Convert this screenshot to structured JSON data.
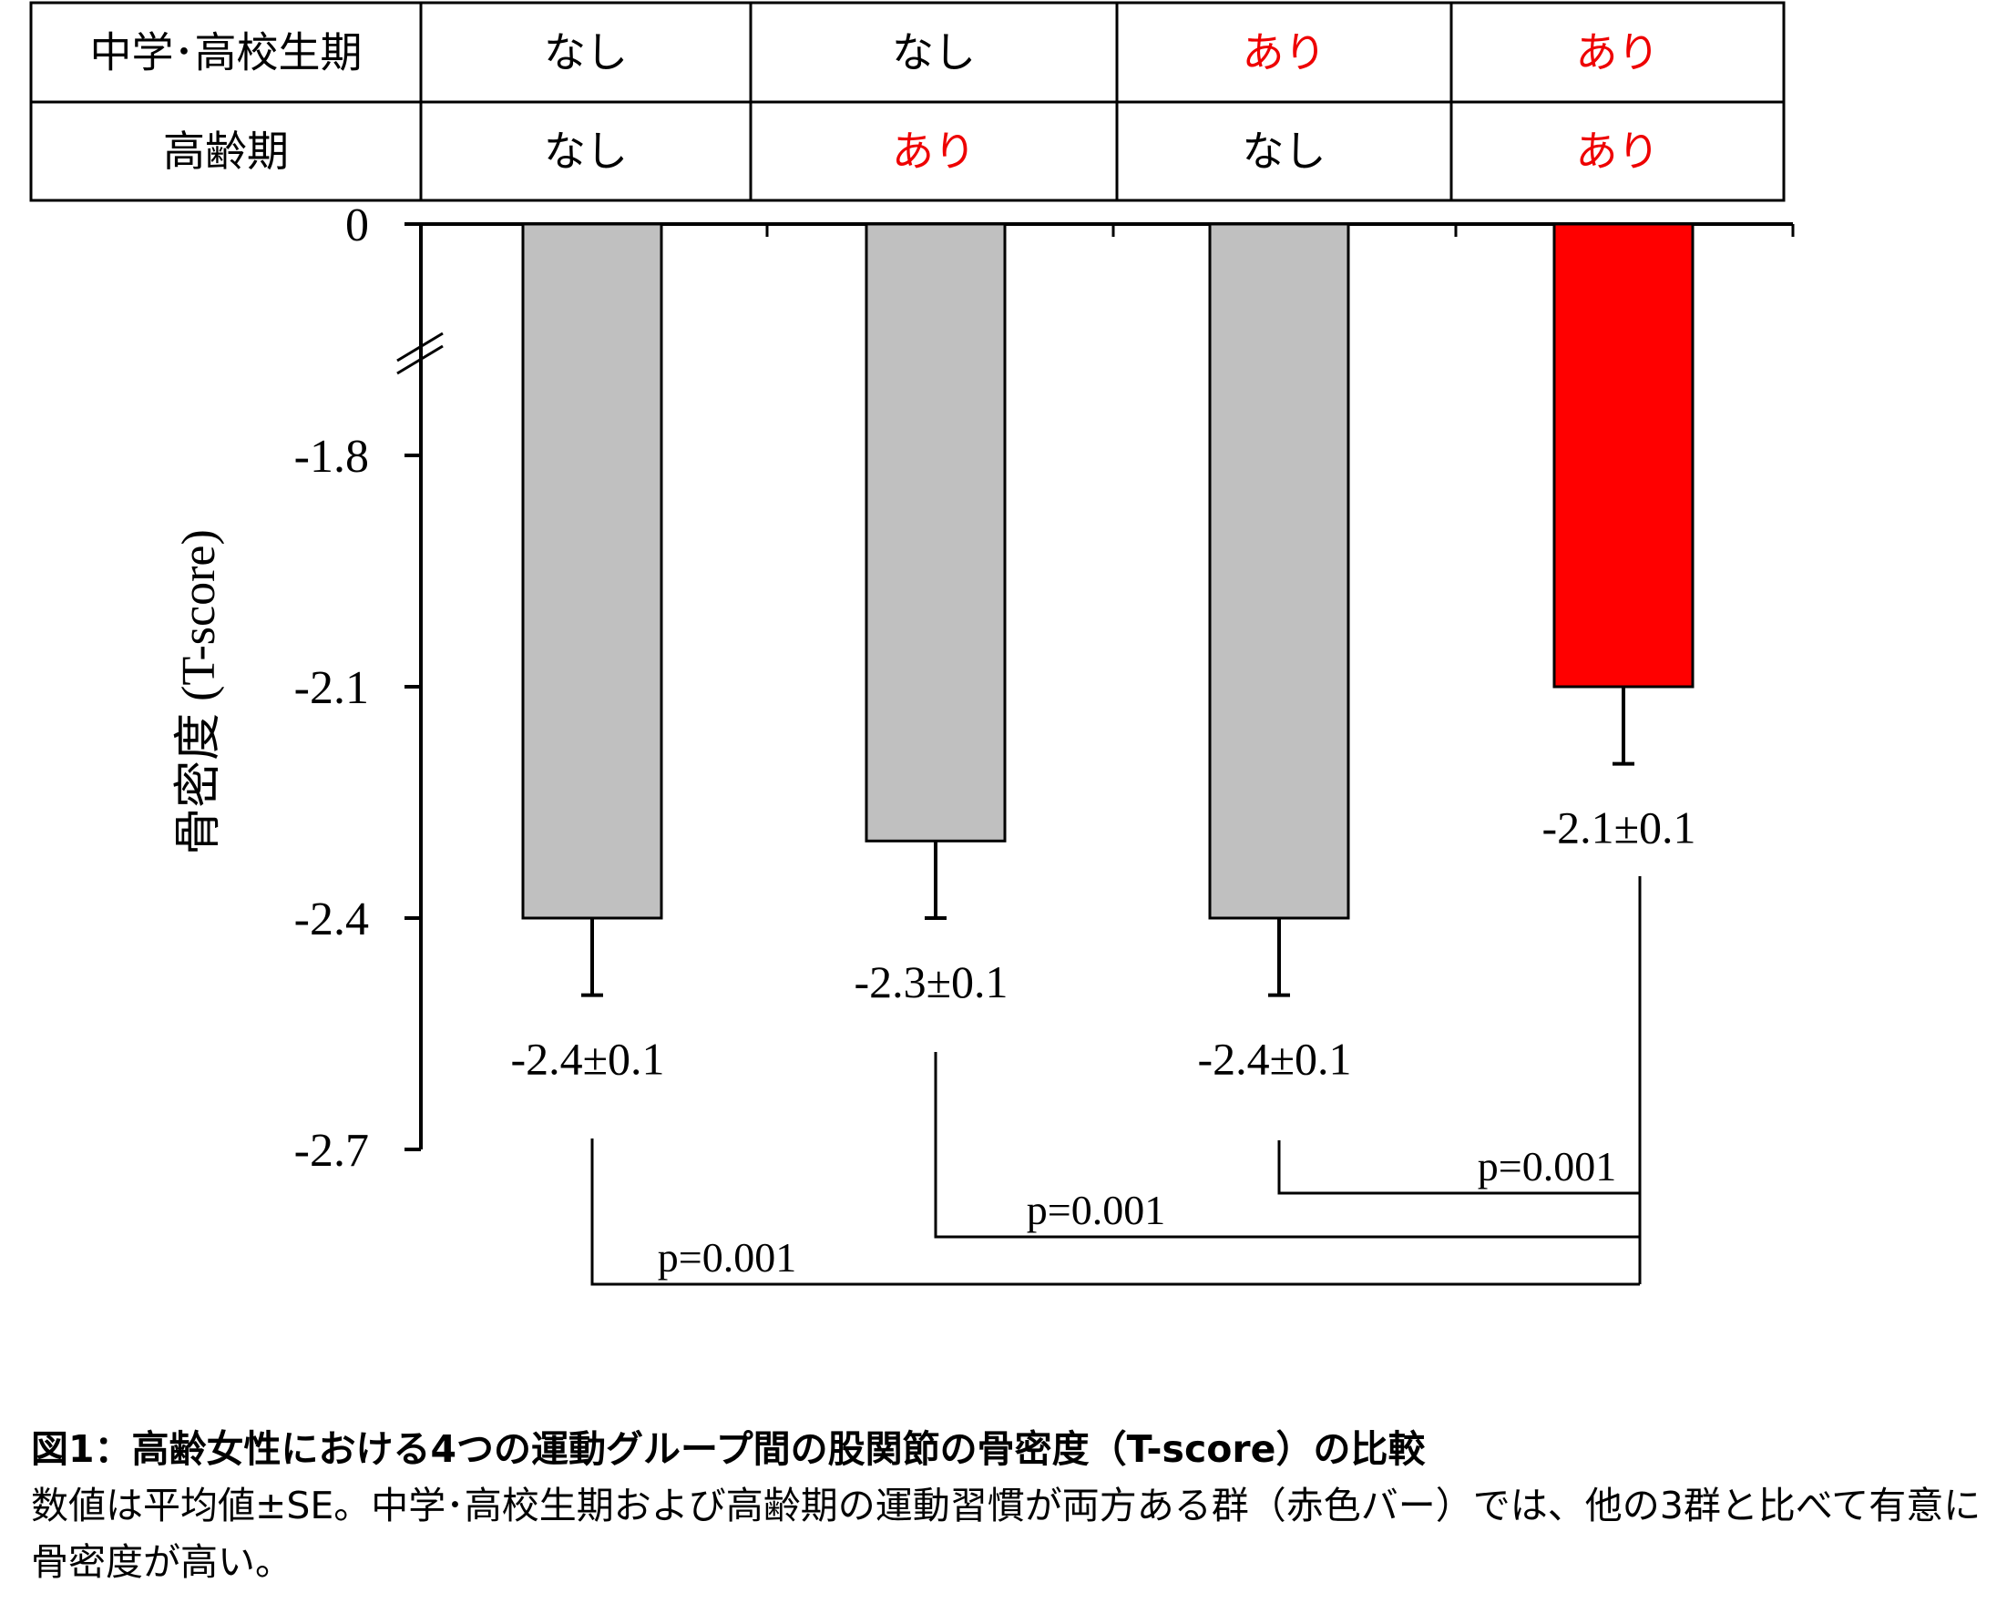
{
  "table": {
    "rows": [
      {
        "label": "中学･高校生期",
        "values": [
          "なし",
          "なし",
          "あり",
          "あり"
        ]
      },
      {
        "label": "高齢期",
        "values": [
          "なし",
          "あり",
          "なし",
          "あり"
        ]
      }
    ],
    "no_color": "#000000",
    "yes_color": "#ee0000"
  },
  "chart_data": {
    "type": "bar",
    "categories": [
      "なし/なし",
      "なし/あり",
      "あり/なし",
      "あり/あり"
    ],
    "values": [
      -2.4,
      -2.3,
      -2.4,
      -2.1
    ],
    "errors": [
      0.1,
      0.1,
      0.1,
      0.1
    ],
    "value_labels": [
      "-2.4±0.1",
      "-2.3±0.1",
      "-2.4±0.1",
      "-2.1±0.1"
    ],
    "bar_colors": [
      "#c0c0c0",
      "#c0c0c0",
      "#c0c0c0",
      "#ff0000"
    ],
    "ylabel": "骨密度 (T-score)",
    "yticks": [
      "0",
      "-1.8",
      "-2.1",
      "-2.4",
      "-2.7"
    ],
    "ylim": [
      -2.7,
      0
    ],
    "axis_break": true,
    "grid": false,
    "comparisons": [
      {
        "from": 2,
        "to": 3,
        "label": "p=0.001"
      },
      {
        "from": 1,
        "to": 3,
        "label": "p=0.001"
      },
      {
        "from": 0,
        "to": 3,
        "label": "p=0.001"
      }
    ]
  },
  "caption": {
    "title": "図1：高齢女性における4つの運動グループ間の股関節の骨密度（T-score）の比較",
    "body": "数値は平均値±SE。中学･高校生期および高齢期の運動習慣が両方ある群（赤色バー）では、他の3群と比べて有意に骨密度が高い。"
  }
}
